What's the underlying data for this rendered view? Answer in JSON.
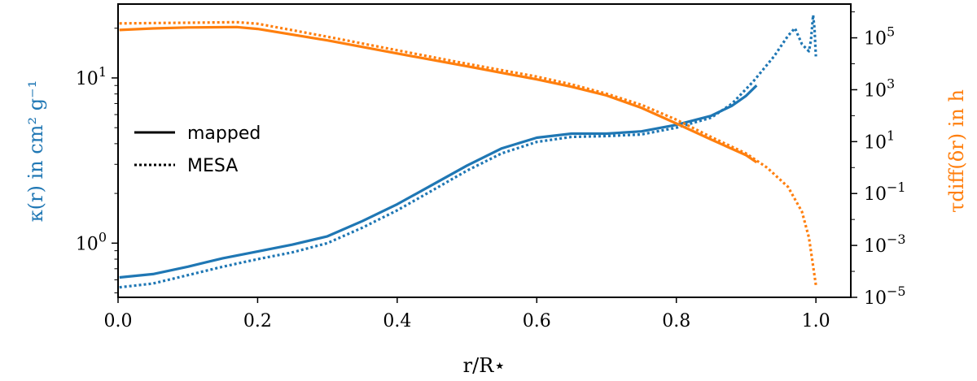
{
  "chart_data": {
    "type": "line",
    "xlabel": "r/R⋆",
    "ylabel_left": "κ(r) in cm² g⁻¹",
    "ylabel_right": "τdiff(δr) in h",
    "xlim": [
      0.0,
      1.05
    ],
    "ylim_left": [
      0.47,
      28
    ],
    "ylim_right": [
      1e-05,
      2000000
    ],
    "yscale_left": "log",
    "yscale_right": "log",
    "x_ticks": [
      "0.0",
      "0.2",
      "0.4",
      "0.6",
      "0.8",
      "1.0"
    ],
    "x_tick_values": [
      0.0,
      0.2,
      0.4,
      0.6,
      0.8,
      1.0
    ],
    "left_ticks": [
      {
        "value": 1,
        "base": "10",
        "exp": "0"
      },
      {
        "value": 10,
        "base": "10",
        "exp": "1"
      }
    ],
    "right_ticks": [
      {
        "value": 1e-05,
        "base": "10",
        "exp": "−5"
      },
      {
        "value": 0.001,
        "base": "10",
        "exp": "−3"
      },
      {
        "value": 0.1,
        "base": "10",
        "exp": "−1"
      },
      {
        "value": 10,
        "base": "10",
        "exp": "1"
      },
      {
        "value": 1000,
        "base": "10",
        "exp": "3"
      },
      {
        "value": 100000,
        "base": "10",
        "exp": "5"
      }
    ],
    "legend": {
      "placement": "center-left",
      "entries": [
        {
          "label": "mapped",
          "style": "solid"
        },
        {
          "label": "MESA",
          "style": "dotted"
        }
      ]
    },
    "colors": {
      "kappa": "#1f77b4",
      "tau": "#ff7f0e",
      "left_axis_label": "#1f77b4",
      "right_axis_label": "#ff7f0e"
    },
    "series": [
      {
        "axis": "left",
        "color": "kappa",
        "style": "solid",
        "x": [
          0.002,
          0.05,
          0.1,
          0.15,
          0.2,
          0.25,
          0.3,
          0.35,
          0.4,
          0.45,
          0.5,
          0.55,
          0.6,
          0.65,
          0.7,
          0.75,
          0.8,
          0.85,
          0.88,
          0.9,
          0.915
        ],
        "y": [
          0.62,
          0.65,
          0.72,
          0.81,
          0.89,
          0.98,
          1.1,
          1.36,
          1.72,
          2.25,
          2.95,
          3.75,
          4.35,
          4.6,
          4.6,
          4.75,
          5.2,
          5.9,
          6.8,
          7.8,
          9.0
        ]
      },
      {
        "axis": "left",
        "color": "kappa",
        "style": "dotted",
        "x": [
          0.002,
          0.05,
          0.1,
          0.15,
          0.2,
          0.25,
          0.3,
          0.35,
          0.4,
          0.45,
          0.5,
          0.55,
          0.6,
          0.65,
          0.7,
          0.75,
          0.8,
          0.85,
          0.88,
          0.91,
          0.94,
          0.96,
          0.97,
          0.98,
          0.99,
          0.993,
          0.996,
          0.998,
          1.0
        ],
        "y": [
          0.54,
          0.57,
          0.64,
          0.72,
          0.8,
          0.88,
          1.0,
          1.24,
          1.58,
          2.08,
          2.75,
          3.5,
          4.1,
          4.4,
          4.45,
          4.55,
          5.0,
          5.75,
          7.0,
          9.5,
          13.5,
          18.0,
          20.0,
          16.0,
          14.5,
          17.0,
          24.0,
          20.0,
          13.5
        ]
      },
      {
        "axis": "right",
        "color": "tau",
        "style": "solid",
        "x": [
          0.002,
          0.05,
          0.1,
          0.17,
          0.2,
          0.3,
          0.4,
          0.5,
          0.6,
          0.65,
          0.7,
          0.75,
          0.8,
          0.85,
          0.9,
          0.915
        ],
        "y": [
          200000,
          230000,
          250000,
          260000,
          220000,
          80000,
          25000,
          8000,
          2500,
          1300,
          600,
          200,
          50,
          12,
          3,
          1.6
        ]
      },
      {
        "axis": "right",
        "color": "tau",
        "style": "dotted",
        "x": [
          0.002,
          0.05,
          0.1,
          0.17,
          0.2,
          0.3,
          0.4,
          0.5,
          0.6,
          0.65,
          0.7,
          0.75,
          0.8,
          0.85,
          0.9,
          0.93,
          0.96,
          0.98,
          0.99,
          1.0
        ],
        "y": [
          360000,
          370000,
          380000,
          400000,
          350000,
          110000,
          33000,
          10000,
          3200,
          1600,
          700,
          260,
          70,
          15,
          3.5,
          1.0,
          0.18,
          0.02,
          0.002,
          3e-05
        ]
      }
    ]
  }
}
